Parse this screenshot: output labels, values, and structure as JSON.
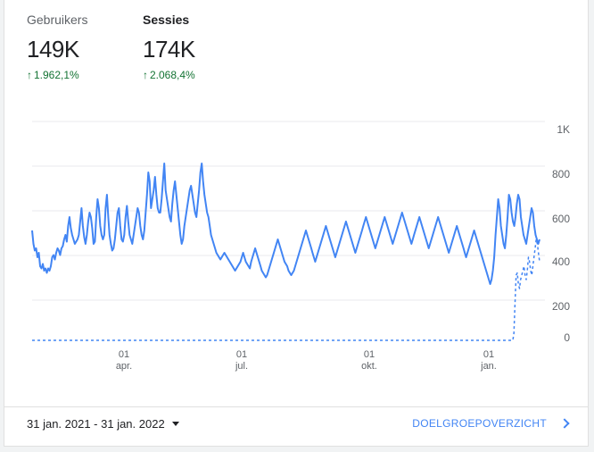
{
  "metrics": [
    {
      "name": "Gebruikers",
      "value": "149K",
      "change": "1.962,1%",
      "active": false
    },
    {
      "name": "Sessies",
      "value": "174K",
      "change": "2.068,4%",
      "active": true
    }
  ],
  "chart_data": {
    "type": "line",
    "y_ticks": [
      "1K",
      "800",
      "600",
      "400",
      "200",
      "0"
    ],
    "x_ticks": [
      {
        "day": "01",
        "month": "apr."
      },
      {
        "day": "01",
        "month": "jul."
      },
      {
        "day": "01",
        "month": "okt."
      },
      {
        "day": "01",
        "month": "jan."
      }
    ],
    "x_range": [
      "2021-01-31",
      "2022-01-31"
    ],
    "series": [
      {
        "style": "solid",
        "color": "#4285f4",
        "values": [
          540,
          480,
          450,
          460,
          420,
          440,
          380,
          370,
          390,
          360,
          370,
          350,
          370,
          360,
          380,
          420,
          430,
          410,
          440,
          460,
          450,
          430,
          460,
          470,
          500,
          520,
          490,
          560,
          600,
          550,
          520,
          500,
          480,
          490,
          500,
          520,
          580,
          640,
          560,
          510,
          480,
          520,
          580,
          620,
          600,
          550,
          480,
          490,
          600,
          680,
          640,
          560,
          520,
          500,
          520,
          640,
          700,
          600,
          520,
          480,
          450,
          460,
          500,
          560,
          620,
          640,
          560,
          500,
          490,
          520,
          600,
          650,
          580,
          520,
          500,
          480,
          520,
          560,
          600,
          640,
          620,
          560,
          520,
          500,
          540,
          620,
          700,
          800,
          760,
          640,
          680,
          720,
          780,
          700,
          640,
          620,
          620,
          680,
          760,
          840,
          720,
          680,
          640,
          600,
          580,
          660,
          720,
          760,
          700,
          640,
          580,
          520,
          480,
          500,
          560,
          600,
          640,
          680,
          720,
          740,
          700,
          660,
          620,
          600,
          660,
          720,
          800,
          840,
          760,
          700,
          660,
          620,
          600,
          560,
          520,
          500,
          480,
          460,
          440,
          430,
          420,
          410,
          420,
          430,
          440,
          430,
          420,
          410,
          400,
          390,
          380,
          370,
          360,
          370,
          380,
          390,
          400,
          420,
          440,
          420,
          400,
          390,
          380,
          370,
          400,
          420,
          440,
          460,
          440,
          420,
          400,
          380,
          360,
          350,
          340,
          330,
          340,
          360,
          380,
          400,
          420,
          440,
          460,
          480,
          500,
          480,
          460,
          440,
          420,
          400,
          390,
          380,
          360,
          350,
          340,
          350,
          360,
          380,
          400,
          420,
          440,
          460,
          480,
          500,
          520,
          540,
          520,
          500,
          480,
          460,
          440,
          420,
          400,
          420,
          440,
          460,
          480,
          500,
          520,
          540,
          560,
          540,
          520,
          500,
          480,
          460,
          440,
          420,
          440,
          460,
          480,
          500,
          520,
          540,
          560,
          580,
          560,
          540,
          520,
          500,
          480,
          460,
          440,
          460,
          480,
          500,
          520,
          540,
          560,
          580,
          600,
          580,
          560,
          540,
          520,
          500,
          480,
          460,
          480,
          500,
          520,
          540,
          560,
          580,
          600,
          580,
          560,
          540,
          520,
          500,
          480,
          500,
          520,
          540,
          560,
          580,
          600,
          620,
          600,
          580,
          560,
          540,
          520,
          500,
          480,
          500,
          520,
          540,
          560,
          580,
          600,
          580,
          560,
          540,
          520,
          500,
          480,
          460,
          480,
          500,
          520,
          540,
          560,
          580,
          600,
          580,
          560,
          540,
          520,
          500,
          480,
          460,
          440,
          460,
          480,
          500,
          520,
          540,
          560,
          540,
          520,
          500,
          480,
          460,
          440,
          420,
          440,
          460,
          480,
          500,
          520,
          540,
          520,
          500,
          480,
          460,
          440,
          420,
          400,
          380,
          360,
          340,
          320,
          300,
          320,
          360,
          420,
          520,
          600,
          680,
          640,
          560,
          520,
          480,
          460,
          520,
          600,
          700,
          680,
          620,
          580,
          560,
          600,
          660,
          700,
          680,
          600,
          560,
          520,
          500,
          480,
          520,
          560,
          600,
          640,
          620,
          560,
          520,
          500,
          480,
          500
        ]
      },
      {
        "style": "dashed",
        "color": "#4285f4",
        "values": [
          0,
          0,
          0,
          0,
          0,
          0,
          0,
          0,
          0,
          0,
          0,
          0,
          0,
          0,
          0,
          0,
          0,
          0,
          0,
          0,
          0,
          0,
          0,
          0,
          0,
          0,
          0,
          0,
          0,
          0,
          0,
          0,
          0,
          0,
          0,
          0,
          0,
          0,
          0,
          0,
          0,
          0,
          0,
          0,
          0,
          0,
          0,
          0,
          0,
          0,
          0,
          0,
          0,
          0,
          0,
          0,
          0,
          0,
          0,
          0,
          0,
          0,
          0,
          0,
          0,
          0,
          0,
          0,
          0,
          0,
          0,
          0,
          0,
          0,
          0,
          0,
          0,
          0,
          0,
          0,
          0,
          0,
          0,
          0,
          0,
          0,
          0,
          0,
          0,
          0,
          0,
          0,
          0,
          0,
          0,
          0,
          0,
          0,
          0,
          0,
          0,
          0,
          0,
          0,
          0,
          0,
          0,
          0,
          0,
          0,
          0,
          0,
          0,
          0,
          0,
          0,
          0,
          0,
          0,
          0,
          0,
          0,
          0,
          0,
          0,
          0,
          0,
          0,
          0,
          0,
          0,
          0,
          0,
          0,
          0,
          0,
          0,
          0,
          0,
          0,
          0,
          0,
          0,
          0,
          0,
          0,
          0,
          0,
          0,
          0,
          0,
          0,
          0,
          0,
          0,
          0,
          0,
          0,
          0,
          0,
          0,
          0,
          0,
          0,
          0,
          0,
          0,
          0,
          0,
          0,
          0,
          0,
          0,
          0,
          0,
          0,
          0,
          0,
          0,
          0,
          0,
          0,
          0,
          0,
          0,
          0,
          0,
          0,
          0,
          0,
          0,
          0,
          0,
          0,
          0,
          0,
          0,
          0,
          0,
          0,
          0,
          0,
          0,
          0,
          0,
          0,
          0,
          0,
          0,
          0,
          0,
          0,
          0,
          0,
          0,
          0,
          0,
          0,
          0,
          0,
          0,
          0,
          0,
          0,
          0,
          0,
          0,
          0,
          0,
          0,
          0,
          0,
          0,
          0,
          0,
          0,
          0,
          0,
          0,
          0,
          0,
          0,
          0,
          0,
          0,
          0,
          0,
          0,
          0,
          0,
          0,
          0,
          0,
          0,
          0,
          0,
          0,
          0,
          0,
          0,
          0,
          0,
          0,
          0,
          0,
          0,
          0,
          0,
          0,
          0,
          0,
          0,
          0,
          0,
          0,
          0,
          0,
          0,
          0,
          0,
          0,
          0,
          0,
          0,
          0,
          0,
          0,
          0,
          0,
          0,
          0,
          0,
          0,
          0,
          0,
          0,
          0,
          0,
          0,
          0,
          0,
          0,
          0,
          0,
          0,
          0,
          0,
          0,
          0,
          0,
          0,
          0,
          0,
          0,
          0,
          0,
          0,
          0,
          0,
          0,
          0,
          0,
          0,
          0,
          0,
          0,
          0,
          0,
          0,
          0,
          0,
          0,
          0,
          0,
          0,
          0,
          0,
          0,
          0,
          0,
          0,
          0,
          0,
          0,
          0,
          0,
          0,
          0,
          0,
          0,
          0,
          0,
          0,
          0,
          0,
          0,
          0,
          0,
          0,
          0,
          0,
          0,
          0,
          0,
          0,
          0,
          0,
          0,
          0,
          0,
          0,
          0,
          0,
          0,
          0,
          0,
          0,
          0,
          0,
          0,
          0,
          0,
          0,
          0,
          0,
          0,
          0,
          0,
          0,
          0,
          0,
          0,
          0,
          0,
          0,
          0,
          0,
          0,
          0,
          0,
          0,
          0,
          0,
          0,
          0,
          0,
          0,
          0,
          0,
          0,
          0,
          0,
          0,
          0,
          0,
          0,
          0,
          0,
          0,
          0,
          0,
          0,
          0,
          0,
          0,
          0,
          0,
          0,
          0,
          0,
          0,
          0,
          80,
          220,
          340,
          350,
          300,
          280,
          320,
          340,
          360,
          380,
          340,
          320,
          360,
          420,
          400,
          360,
          340,
          380,
          420,
          460,
          500,
          480,
          440,
          400
        ]
      }
    ]
  },
  "footer": {
    "date_range": "31 jan. 2021 - 31 jan. 2022",
    "link_label": "DOELGROEPOVERZICHT"
  },
  "colors": {
    "line": "#4285f4",
    "positive": "#137333",
    "link": "#4285f4"
  }
}
